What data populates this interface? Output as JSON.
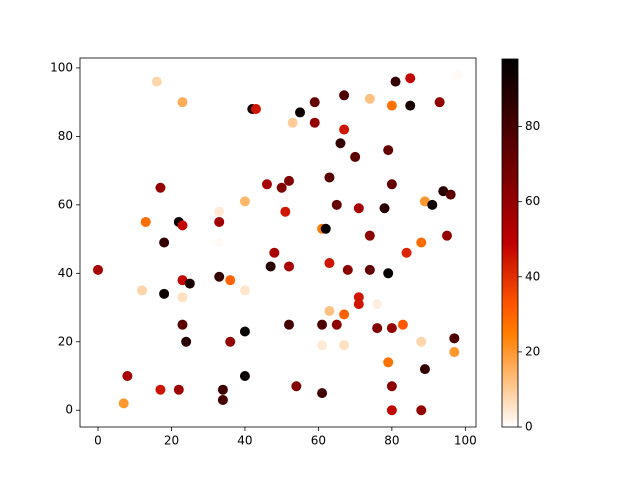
{
  "chart_data": {
    "type": "scatter",
    "x": [
      0,
      7,
      8,
      12,
      13,
      16,
      17,
      17,
      18,
      18,
      22,
      22,
      23,
      23,
      23,
      23,
      23,
      24,
      25,
      33,
      33,
      33,
      33,
      34,
      34,
      36,
      36,
      40,
      40,
      40,
      40,
      42,
      43,
      46,
      47,
      48,
      50,
      51,
      52,
      52,
      52,
      53,
      54,
      55,
      59,
      59,
      61,
      61,
      61,
      61,
      62,
      63,
      63,
      63,
      65,
      65,
      66,
      67,
      67,
      67,
      67,
      68,
      70,
      71,
      71,
      71,
      74,
      74,
      74,
      76,
      76,
      78,
      79,
      79,
      79,
      80,
      80,
      80,
      80,
      80,
      81,
      83,
      84,
      85,
      85,
      88,
      88,
      88,
      89,
      89,
      91,
      93,
      94,
      95,
      96,
      97,
      97,
      98
    ],
    "values": [
      41,
      2,
      10,
      35,
      55,
      96,
      65,
      6,
      49,
      34,
      55,
      6,
      54,
      38,
      33,
      90,
      25,
      20,
      37,
      58,
      55,
      39,
      49,
      6,
      3,
      38,
      20,
      61,
      35,
      23,
      10,
      88,
      88,
      66,
      42,
      46,
      65,
      58,
      67,
      42,
      25,
      84,
      7,
      87,
      90,
      84,
      53,
      25,
      19,
      5,
      53,
      68,
      43,
      29,
      60,
      25,
      78,
      92,
      82,
      28,
      19,
      41,
      74,
      59,
      33,
      31,
      91,
      51,
      41,
      31,
      24,
      59,
      76,
      40,
      14,
      89,
      66,
      24,
      7,
      0,
      96,
      25,
      46,
      97,
      89,
      49,
      20,
      0,
      12,
      61,
      60,
      90,
      64,
      51,
      63,
      17,
      21,
      98
    ],
    "c": [
      55,
      20,
      55,
      8,
      28,
      8,
      60,
      45,
      85,
      95,
      95,
      58,
      48,
      48,
      6,
      16,
      75,
      88,
      92,
      4,
      57,
      85,
      1,
      82,
      80,
      30,
      60,
      14,
      5,
      97,
      97,
      92,
      45,
      55,
      88,
      55,
      65,
      45,
      65,
      55,
      80,
      10,
      65,
      95,
      72,
      60,
      25,
      78,
      4,
      82,
      97,
      75,
      45,
      12,
      72,
      62,
      85,
      78,
      45,
      30,
      6,
      62,
      75,
      55,
      45,
      45,
      12,
      62,
      72,
      3,
      65,
      88,
      72,
      97,
      27,
      27,
      72,
      60,
      62,
      48,
      85,
      32,
      42,
      48,
      92,
      28,
      8,
      60,
      85,
      20,
      95,
      60,
      88,
      60,
      75,
      20,
      78,
      1
    ],
    "xlim": [
      -4.9,
      102.9
    ],
    "ylim": [
      -4.9,
      102.9
    ],
    "xticks": [
      0,
      20,
      40,
      60,
      80,
      100
    ],
    "yticks": [
      0,
      20,
      40,
      60,
      80,
      100
    ],
    "colormap": "gist_heat_r",
    "colorbar": {
      "ylim": [
        0,
        98
      ],
      "yticks": [
        0,
        20,
        40,
        60,
        80
      ]
    }
  }
}
